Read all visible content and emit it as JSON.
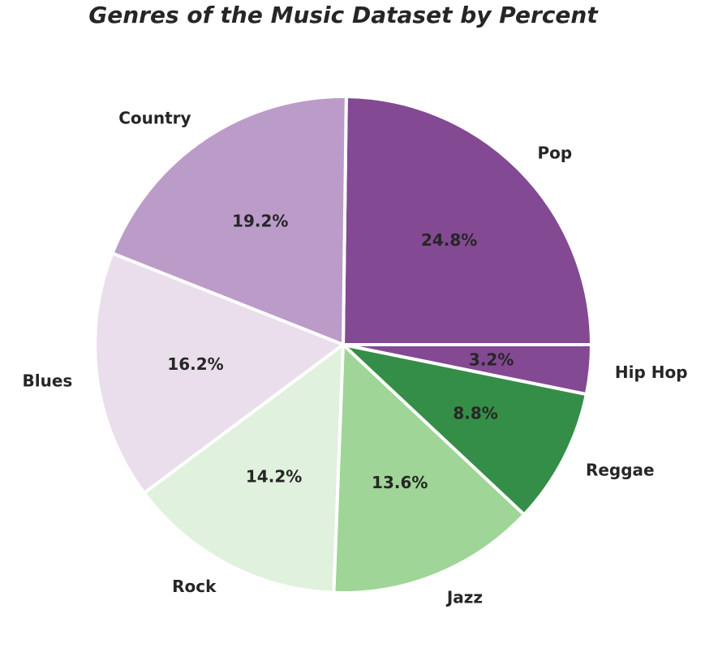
{
  "chart_data": {
    "type": "pie",
    "title": "Genres of the Music Dataset by Percent",
    "categories": [
      "Pop",
      "Country",
      "Blues",
      "Rock",
      "Jazz",
      "Reggae",
      "Hip Hop"
    ],
    "values": [
      24.8,
      19.2,
      16.2,
      14.2,
      13.6,
      8.8,
      3.2
    ],
    "value_labels": [
      "24.8%",
      "19.2%",
      "16.2%",
      "14.2%",
      "13.6%",
      "8.8%",
      "3.2%"
    ],
    "colors": [
      "#834993",
      "#bb9cc9",
      "#eadeec",
      "#e0f1dd",
      "#9fd597",
      "#358e47",
      "#834993"
    ],
    "start_angle_deg": 0,
    "direction": "counterclockwise",
    "legend": "none"
  }
}
